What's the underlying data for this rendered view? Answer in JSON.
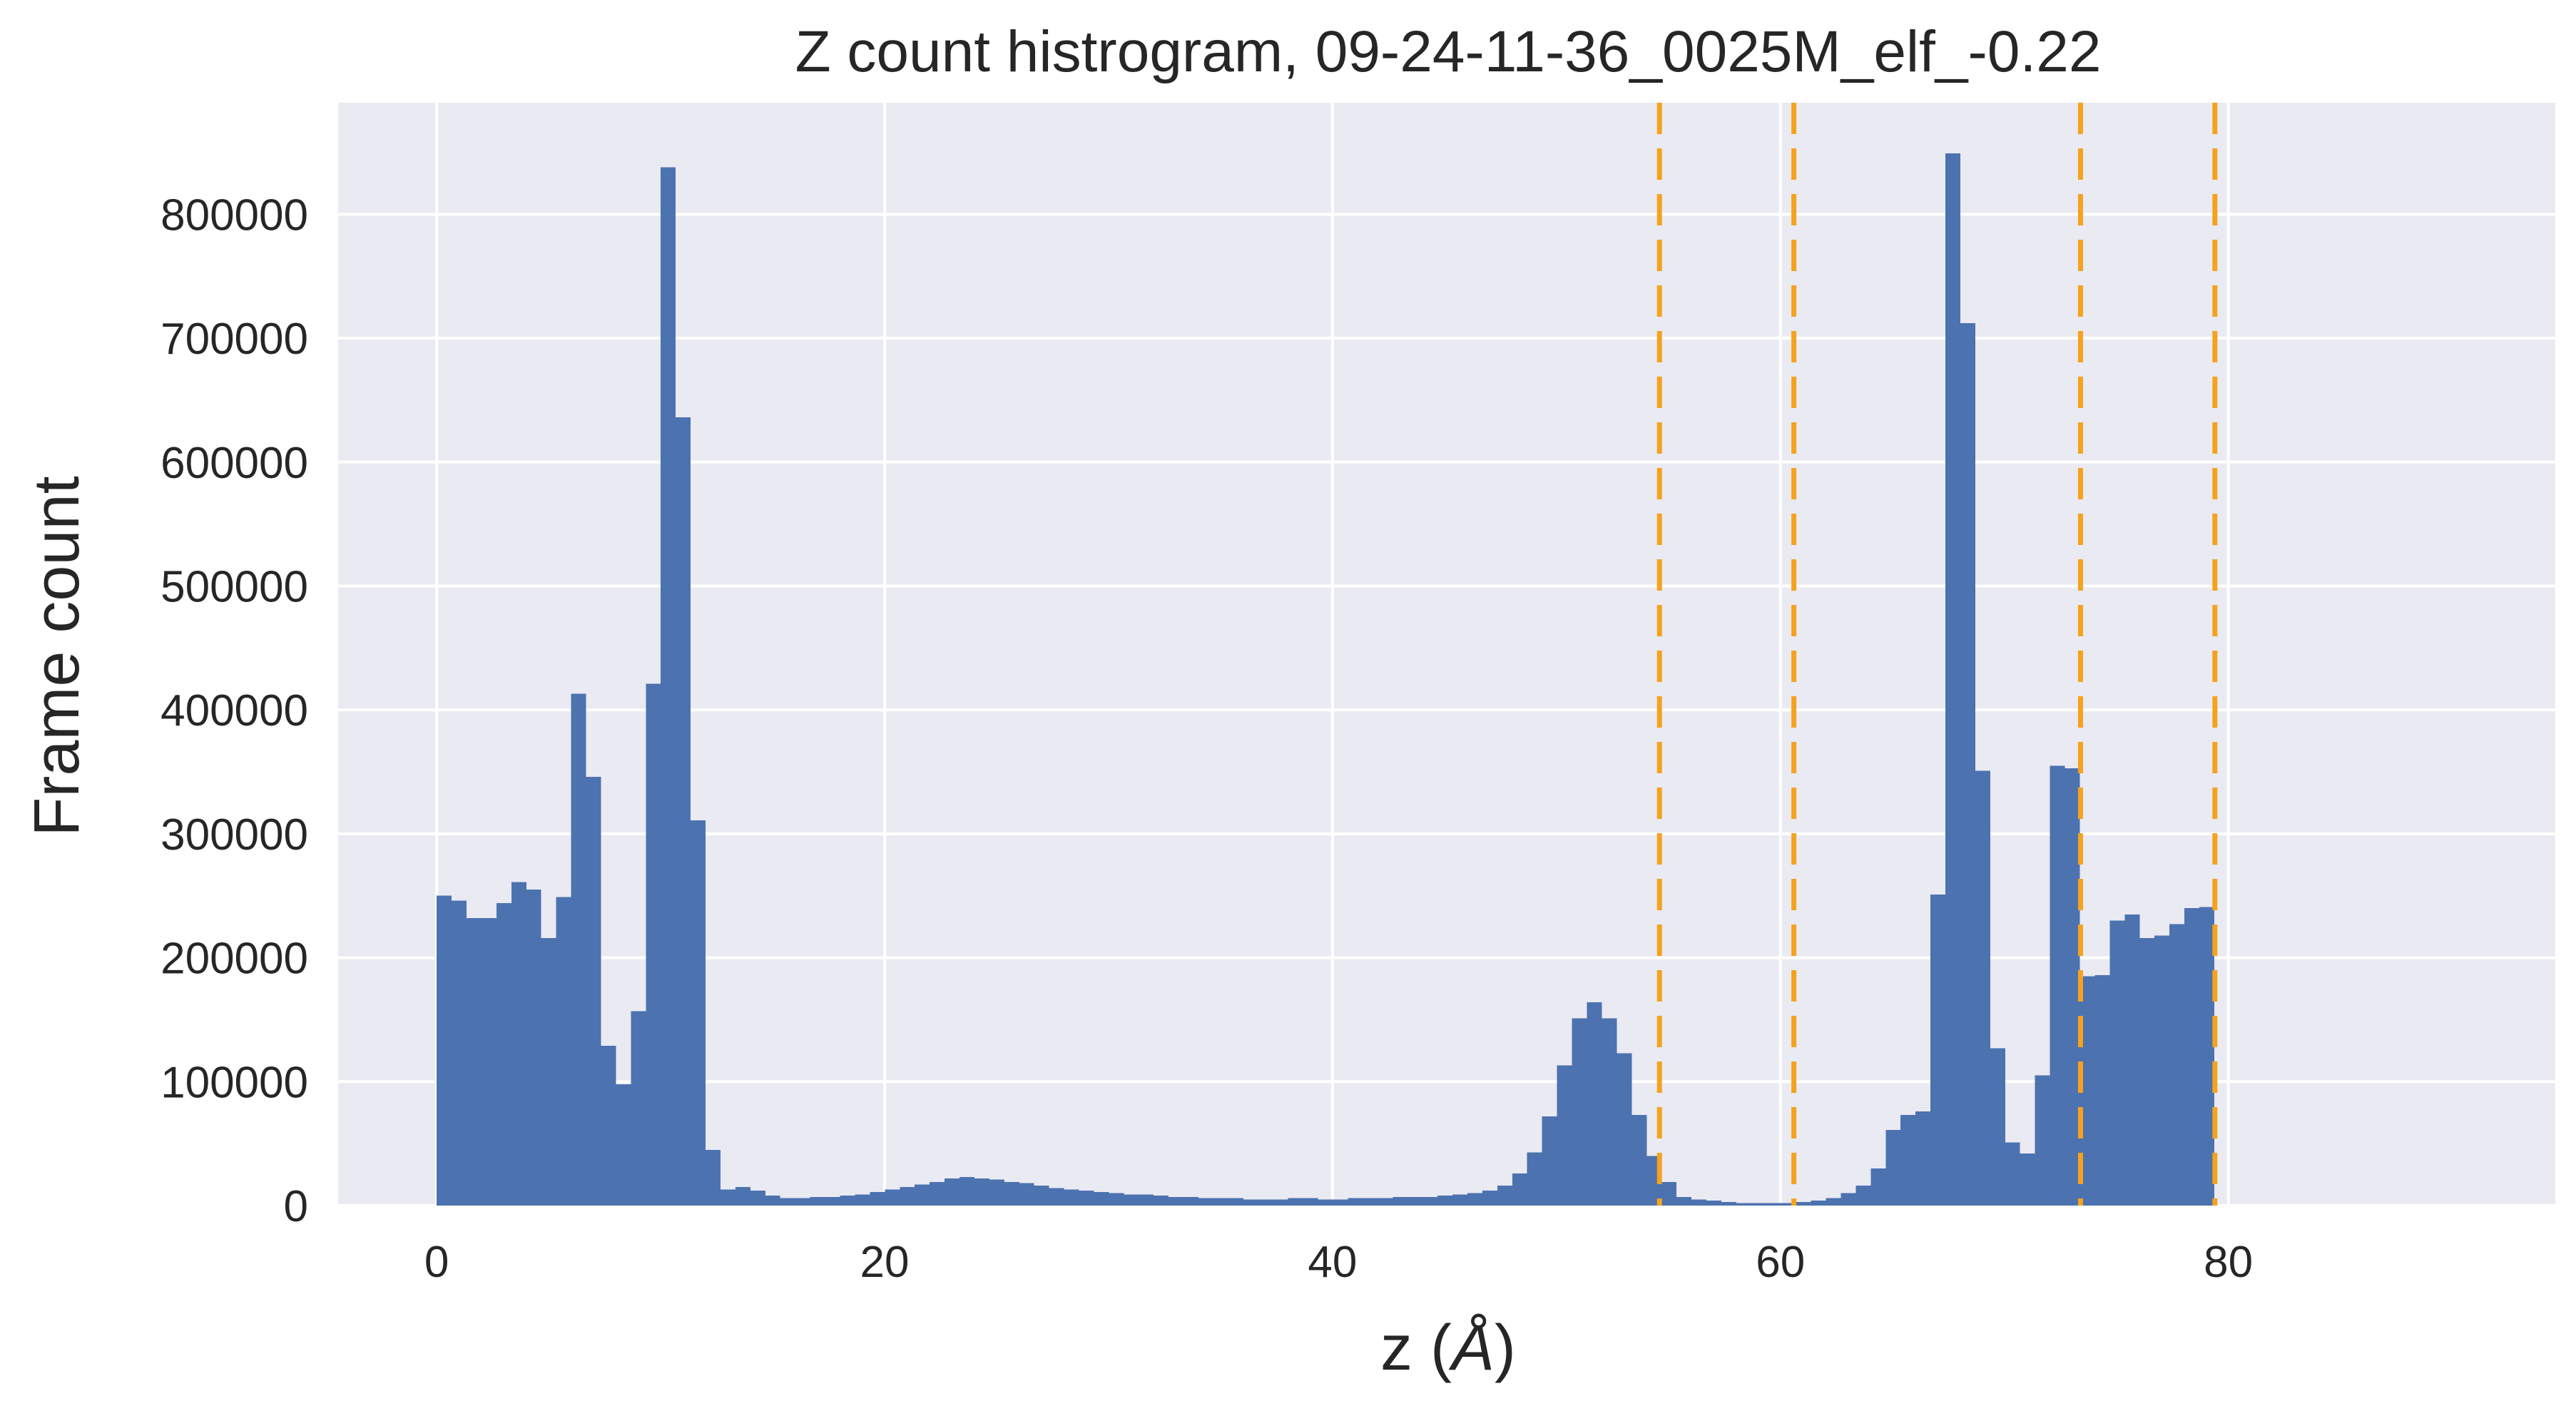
{
  "chart_data": {
    "type": "bar",
    "title": "Z count histrogram, 09-24-11-36_0025M_elf_-0.22",
    "xlabel_prefix": "z (",
    "xlabel_unit": "Å",
    "xlabel_suffix": ")",
    "ylabel": "Frame count",
    "xlim": [
      -4.4,
      94.6
    ],
    "ylim": [
      0,
      890000
    ],
    "x_ticks": [
      0,
      20,
      40,
      60,
      80
    ],
    "x_tick_labels": [
      "0",
      "20",
      "40",
      "60",
      "80"
    ],
    "y_ticks": [
      0,
      100000,
      200000,
      300000,
      400000,
      500000,
      600000,
      700000,
      800000
    ],
    "y_tick_labels": [
      "0",
      "100000",
      "200000",
      "300000",
      "400000",
      "500000",
      "600000",
      "700000",
      "800000"
    ],
    "grid": true,
    "bins": {
      "start": 0,
      "width": 0.667,
      "counts": [
        250000,
        246000,
        232000,
        232000,
        244000,
        261000,
        255000,
        216000,
        249000,
        413000,
        346000,
        129000,
        98000,
        157000,
        421000,
        838000,
        636000,
        311000,
        45000,
        13000,
        15000,
        12000,
        8000,
        6000,
        6000,
        7000,
        7000,
        8000,
        9000,
        11000,
        13000,
        15000,
        17000,
        19000,
        22000,
        23000,
        22000,
        21000,
        19000,
        18000,
        16000,
        14000,
        13000,
        12000,
        11000,
        10000,
        9000,
        9000,
        8000,
        7000,
        7000,
        6000,
        6000,
        6000,
        5000,
        5000,
        5000,
        6000,
        6000,
        5000,
        5000,
        6000,
        6000,
        6000,
        7000,
        7000,
        7000,
        8000,
        9000,
        10000,
        12000,
        16000,
        26000,
        43000,
        72000,
        113000,
        151000,
        164000,
        151000,
        123000,
        73000,
        40000,
        19000,
        7000,
        5000,
        4000,
        3000,
        2000,
        2000,
        2000,
        2000,
        3000,
        4000,
        6000,
        10000,
        16000,
        30000,
        61000,
        73000,
        76000,
        251000,
        849000,
        712000,
        351000,
        127000,
        51000,
        42000,
        105000,
        355000,
        353000,
        185000,
        186000,
        230000,
        235000,
        216000,
        218000,
        227000,
        240000,
        241000
      ]
    },
    "vlines": [
      54.6,
      60.6,
      73.4,
      79.4
    ],
    "colors": {
      "bars": "#4c72b0",
      "vlines": "#f5a21e",
      "plot_bg": "#eaeaf2",
      "grid": "#ffffff"
    }
  }
}
